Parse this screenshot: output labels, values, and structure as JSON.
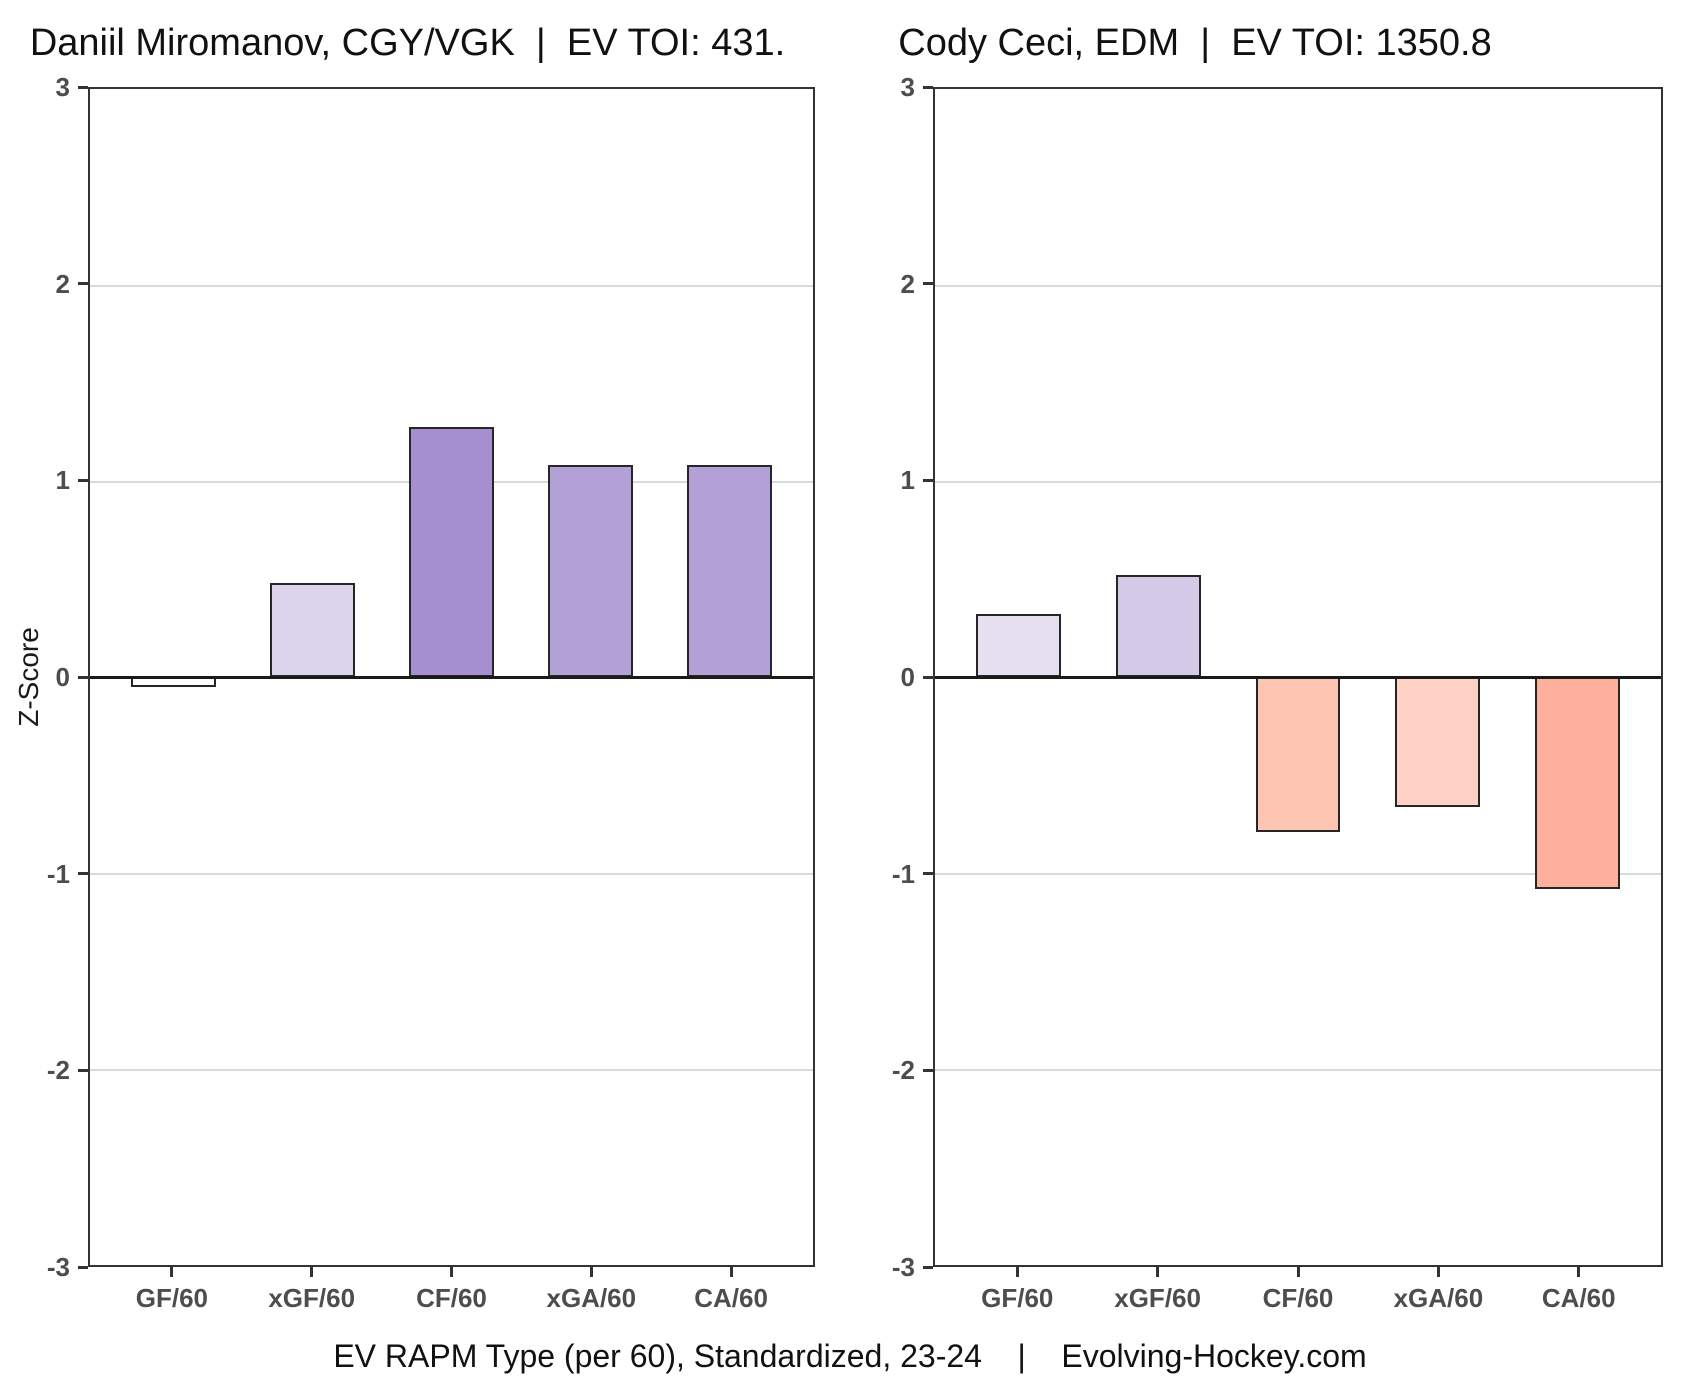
{
  "figure": {
    "caption": "EV RAPM Type (per 60), Standardized, 23-24    |    Evolving-Hockey.com",
    "ylabel": "Z-Score",
    "background": "#ffffff"
  },
  "chart_data": [
    {
      "type": "bar",
      "title": "Daniil Miromanov, CGY/VGK  |  EV TOI: 431.",
      "categories": [
        "GF/60",
        "xGF/60",
        "CF/60",
        "xGA/60",
        "CA/60"
      ],
      "values": [
        -0.05,
        0.48,
        1.27,
        1.08,
        1.08
      ],
      "bar_colors": [
        "#fefefe",
        "#dcd3ec",
        "#a58fd0",
        "#b2a0d6",
        "#b2a0d6"
      ],
      "xlabel": "",
      "ylabel": "Z-Score",
      "ylim": [
        -3,
        3
      ],
      "y_ticks": [
        3,
        2,
        1,
        0,
        -1,
        -2,
        -3
      ],
      "legend": "none",
      "grid": "horizontal-major"
    },
    {
      "type": "bar",
      "title": "Cody Ceci, EDM  |  EV TOI: 1350.8",
      "categories": [
        "GF/60",
        "xGF/60",
        "CF/60",
        "xGA/60",
        "CA/60"
      ],
      "values": [
        0.32,
        0.52,
        -0.79,
        -0.66,
        -1.08
      ],
      "bar_colors": [
        "#e6dff0",
        "#d4cae7",
        "#fec5b3",
        "#ffd1c4",
        "#feb09c"
      ],
      "xlabel": "",
      "ylabel": "",
      "ylim": [
        -3,
        3
      ],
      "y_ticks": [
        3,
        2,
        1,
        0,
        -1,
        -2,
        -3
      ],
      "legend": "none",
      "grid": "horizontal-major"
    }
  ],
  "style": {
    "grid_color": "#d9d9d9",
    "axis_color": "#333333",
    "zero_line_color": "#1a1a1a",
    "bar_edge_color": "#262626",
    "tick_label_color": "#4d4d4d",
    "title_color": "#111111"
  }
}
